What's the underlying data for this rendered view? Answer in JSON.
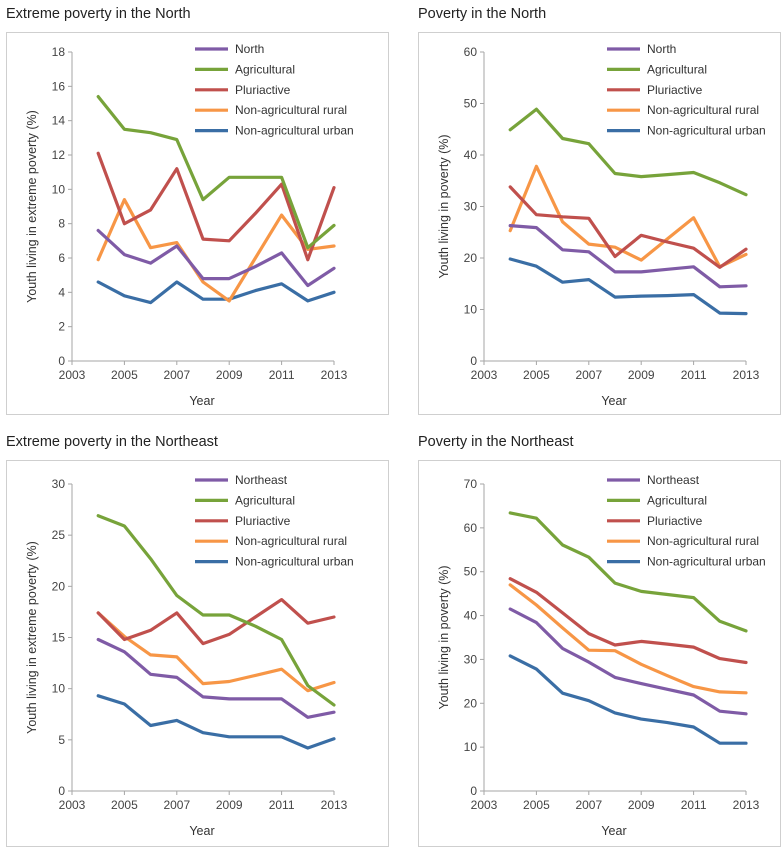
{
  "chart_data": [
    {
      "type": "line",
      "title": "Extreme poverty in the North",
      "xlabel": "Year",
      "ylabel": "Youth living in extreme poverty (%)",
      "xlim": [
        2003,
        2013
      ],
      "xticks": [
        2003,
        2005,
        2007,
        2009,
        2011,
        2013
      ],
      "ylim": [
        0,
        18
      ],
      "yticks": [
        0,
        2,
        4,
        6,
        8,
        10,
        12,
        14,
        16,
        18
      ],
      "grid": false,
      "legend_position": "top-right",
      "x": [
        2004,
        2005,
        2006,
        2007,
        2008,
        2009,
        2010,
        2011,
        2012,
        2013
      ],
      "series": [
        {
          "name": "North",
          "color": "#7f5ba6",
          "values": [
            7.6,
            6.2,
            5.7,
            6.7,
            4.8,
            4.8,
            5.5,
            6.3,
            4.4,
            5.4
          ]
        },
        {
          "name": "Agricultural",
          "color": "#77a33a",
          "values": [
            15.4,
            13.5,
            13.3,
            12.9,
            9.4,
            10.7,
            10.7,
            10.7,
            6.6,
            7.9
          ]
        },
        {
          "name": "Pluriactive",
          "color": "#c0504d",
          "values": [
            12.1,
            8.0,
            8.8,
            11.2,
            7.1,
            7.0,
            8.6,
            10.3,
            5.9,
            10.1
          ]
        },
        {
          "name": "Non-agricultural rural",
          "color": "#f79646",
          "values": [
            5.9,
            9.4,
            6.6,
            6.9,
            4.6,
            3.5,
            6.0,
            8.5,
            6.5,
            6.7
          ]
        },
        {
          "name": "Non-agricultural urban",
          "color": "#3a6ea5",
          "values": [
            4.6,
            3.8,
            3.4,
            4.6,
            3.6,
            3.6,
            4.1,
            4.5,
            3.5,
            4.0
          ]
        }
      ]
    },
    {
      "type": "line",
      "title": "Poverty in the North",
      "xlabel": "Year",
      "ylabel": "Youth living in poverty (%)",
      "xlim": [
        2003,
        2013
      ],
      "xticks": [
        2003,
        2005,
        2007,
        2009,
        2011,
        2013
      ],
      "ylim": [
        0,
        60
      ],
      "yticks": [
        0,
        10,
        20,
        30,
        40,
        50,
        60
      ],
      "grid": false,
      "legend_position": "top-right",
      "x": [
        2004,
        2005,
        2006,
        2007,
        2008,
        2009,
        2010,
        2011,
        2012,
        2013
      ],
      "series": [
        {
          "name": "North",
          "color": "#7f5ba6",
          "values": [
            26.3,
            25.9,
            21.6,
            21.2,
            17.3,
            17.3,
            17.8,
            18.3,
            14.4,
            14.6
          ]
        },
        {
          "name": "Agricultural",
          "color": "#77a33a",
          "values": [
            44.9,
            48.9,
            43.2,
            42.2,
            36.4,
            35.8,
            36.2,
            36.6,
            34.6,
            32.3
          ]
        },
        {
          "name": "Pluriactive",
          "color": "#c0504d",
          "values": [
            33.8,
            28.4,
            28.0,
            27.7,
            20.3,
            24.4,
            23.1,
            21.9,
            18.2,
            21.7
          ]
        },
        {
          "name": "Non-agricultural rural",
          "color": "#f79646",
          "values": [
            25.3,
            37.8,
            27.0,
            22.7,
            22.1,
            19.6,
            23.7,
            27.8,
            18.3,
            20.7
          ]
        },
        {
          "name": "Non-agricultural urban",
          "color": "#3a6ea5",
          "values": [
            19.8,
            18.4,
            15.3,
            15.8,
            12.4,
            12.6,
            12.7,
            12.9,
            9.3,
            9.2
          ]
        }
      ]
    },
    {
      "type": "line",
      "title": "Extreme poverty in the Northeast",
      "xlabel": "Year",
      "ylabel": "Youth living in extreme poverty (%)",
      "xlim": [
        2003,
        2013
      ],
      "xticks": [
        2003,
        2005,
        2007,
        2009,
        2011,
        2013
      ],
      "ylim": [
        0,
        30
      ],
      "yticks": [
        0,
        5,
        10,
        15,
        20,
        25,
        30
      ],
      "grid": false,
      "legend_position": "top-right",
      "x": [
        2004,
        2005,
        2006,
        2007,
        2008,
        2009,
        2010,
        2011,
        2012,
        2013
      ],
      "series": [
        {
          "name": "Northeast",
          "color": "#7f5ba6",
          "values": [
            14.8,
            13.6,
            11.4,
            11.1,
            9.2,
            9.0,
            9.0,
            9.0,
            7.2,
            7.7
          ]
        },
        {
          "name": "Agricultural",
          "color": "#77a33a",
          "values": [
            26.9,
            25.9,
            22.7,
            19.1,
            17.2,
            17.2,
            16.1,
            14.8,
            10.3,
            8.4
          ]
        },
        {
          "name": "Pluriactive",
          "color": "#c0504d",
          "values": [
            17.4,
            14.8,
            15.7,
            17.4,
            14.4,
            15.3,
            17.0,
            18.7,
            16.4,
            17.0
          ]
        },
        {
          "name": "Non-agricultural rural",
          "color": "#f79646",
          "values": [
            17.4,
            15.1,
            13.3,
            13.1,
            10.5,
            10.7,
            11.3,
            11.9,
            9.8,
            10.6
          ]
        },
        {
          "name": "Non-agricultural urban",
          "color": "#3a6ea5",
          "values": [
            9.3,
            8.5,
            6.4,
            6.9,
            5.7,
            5.3,
            5.3,
            5.3,
            4.2,
            5.1
          ]
        }
      ]
    },
    {
      "type": "line",
      "title": "Poverty in the Northeast",
      "xlabel": "Year",
      "ylabel": "Youth living in poverty (%)",
      "xlim": [
        2003,
        2013
      ],
      "xticks": [
        2003,
        2005,
        2007,
        2009,
        2011,
        2013
      ],
      "ylim": [
        0,
        70
      ],
      "yticks": [
        0,
        10,
        20,
        30,
        40,
        50,
        60,
        70
      ],
      "grid": false,
      "legend_position": "top-right",
      "x": [
        2004,
        2005,
        2006,
        2007,
        2008,
        2009,
        2010,
        2011,
        2012,
        2013
      ],
      "series": [
        {
          "name": "Northeast",
          "color": "#7f5ba6",
          "values": [
            41.5,
            38.4,
            32.5,
            29.4,
            25.9,
            24.5,
            23.2,
            21.9,
            18.2,
            17.6
          ]
        },
        {
          "name": "Agricultural",
          "color": "#77a33a",
          "values": [
            63.4,
            62.2,
            56.1,
            53.3,
            47.4,
            45.5,
            44.8,
            44.1,
            38.7,
            36.5
          ]
        },
        {
          "name": "Pluriactive",
          "color": "#c0504d",
          "values": [
            48.4,
            45.3,
            40.6,
            35.9,
            33.3,
            34.1,
            33.5,
            32.8,
            30.2,
            29.3
          ]
        },
        {
          "name": "Non-agricultural rural",
          "color": "#f79646",
          "values": [
            47.0,
            42.4,
            37.2,
            32.1,
            32.0,
            28.9,
            26.3,
            23.8,
            22.6,
            22.4
          ]
        },
        {
          "name": "Non-agricultural urban",
          "color": "#3a6ea5",
          "values": [
            30.8,
            27.8,
            22.3,
            20.6,
            17.8,
            16.4,
            15.6,
            14.6,
            10.9,
            10.9
          ]
        }
      ]
    }
  ]
}
